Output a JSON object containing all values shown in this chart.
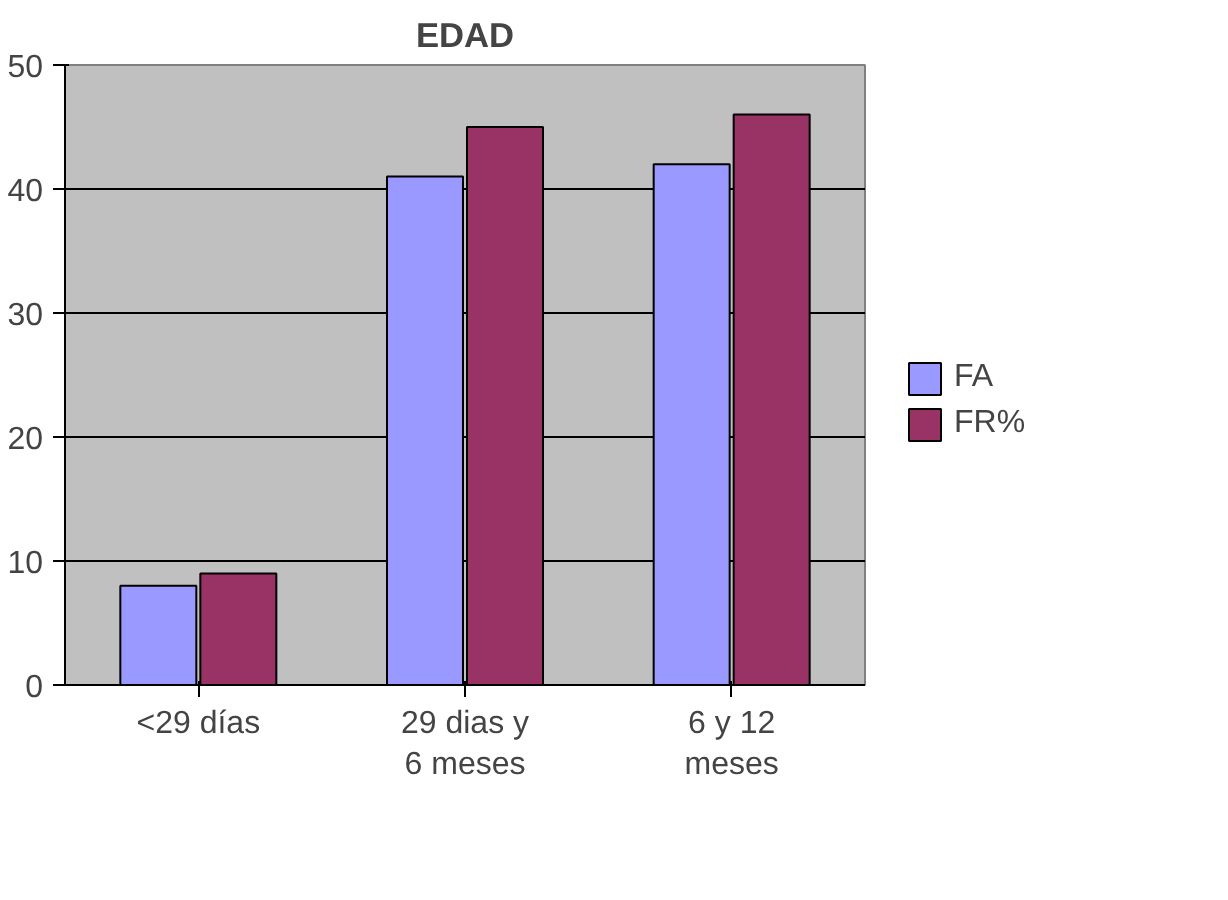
{
  "chart_data": {
    "type": "bar",
    "title": "EDAD",
    "categories": [
      "<29 días",
      "29 dias y 6 meses",
      "6 y 12 meses"
    ],
    "series": [
      {
        "name": "FA",
        "color": "#9999ff",
        "values": [
          8,
          41,
          42
        ]
      },
      {
        "name": "FR%",
        "color": "#993366",
        "values": [
          9,
          45,
          46
        ]
      }
    ],
    "ylim": [
      0,
      50
    ],
    "yticks": [
      0,
      10,
      20,
      30,
      40,
      50
    ],
    "grid": "y",
    "legend": "right"
  }
}
